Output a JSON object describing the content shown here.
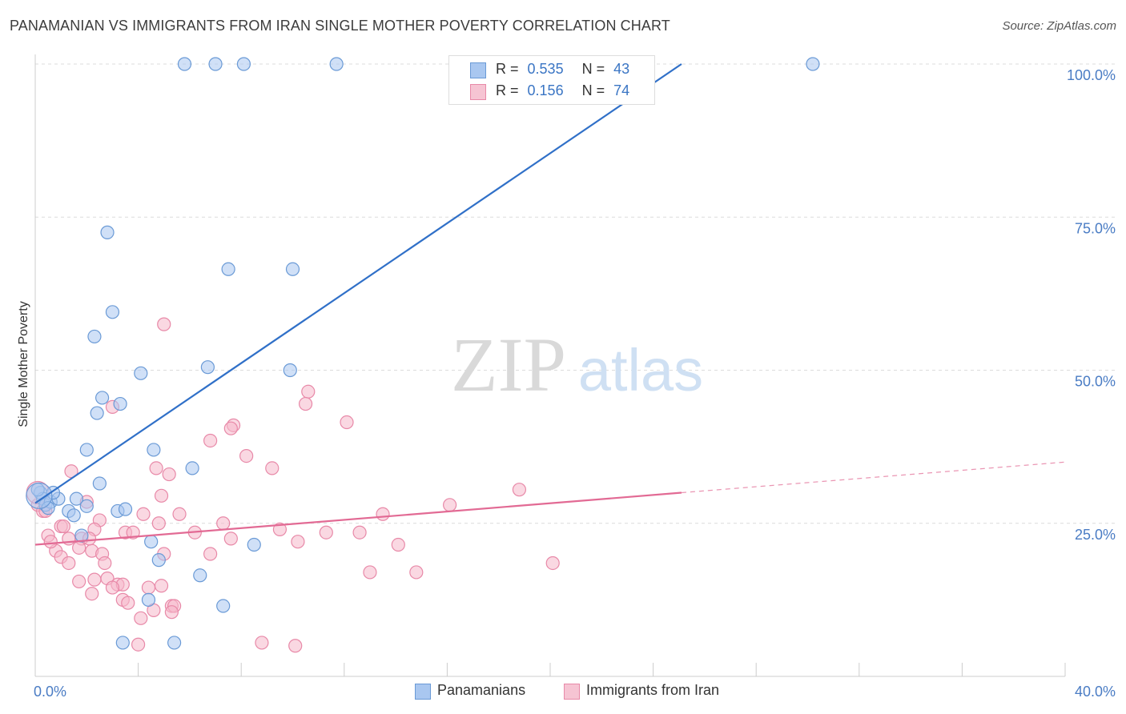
{
  "title": "PANAMANIAN VS IMMIGRANTS FROM IRAN SINGLE MOTHER POVERTY CORRELATION CHART",
  "source": "Source: ZipAtlas.com",
  "watermark": {
    "zip": "ZIP",
    "atlas": "atlas"
  },
  "colors": {
    "blue_fill": "#a9c7f0",
    "blue_stroke": "#6a9ad6",
    "blue_line": "#3070c8",
    "pink_fill": "#f6b8cb",
    "pink_stroke": "#e889a8",
    "pink_line": "#e26a94",
    "tick": "#4a7cc4",
    "grid": "#dcdcdc"
  },
  "legend": {
    "r_label": "R =",
    "n_label": "N =",
    "series": [
      {
        "r": "0.535",
        "n": "43"
      },
      {
        "r": "0.156",
        "n": "74"
      }
    ]
  },
  "bottom_legend": [
    "Panamanians",
    "Immigrants from Iran"
  ],
  "chart_data": {
    "type": "scatter",
    "title": "PANAMANIAN VS IMMIGRANTS FROM IRAN SINGLE MOTHER POVERTY CORRELATION CHART",
    "xlabel": "",
    "ylabel": "Single Mother Poverty",
    "xlim": [
      0,
      40
    ],
    "ylim": [
      0,
      100
    ],
    "x_tick_labels": [
      "0.0%",
      "40.0%"
    ],
    "y_ticks": [
      25,
      50,
      75,
      100
    ],
    "y_tick_labels": [
      "25.0%",
      "50.0%",
      "75.0%",
      "100.0%"
    ],
    "series": [
      {
        "name": "Panamanians",
        "r": 0.535,
        "n": 43,
        "trend": {
          "x0": 0,
          "y0": 28.3,
          "x1": 25.1,
          "y1": 100,
          "dashed_to": null
        },
        "points": [
          [
            5.8,
            100
          ],
          [
            7.0,
            100
          ],
          [
            8.1,
            100
          ],
          [
            11.7,
            100
          ],
          [
            30.2,
            100
          ],
          [
            2.8,
            72.5
          ],
          [
            7.5,
            66.5
          ],
          [
            10.0,
            66.5
          ],
          [
            3.0,
            59.5
          ],
          [
            2.3,
            55.5
          ],
          [
            4.1,
            49.5
          ],
          [
            6.7,
            50.5
          ],
          [
            9.9,
            50.0
          ],
          [
            2.6,
            45.5
          ],
          [
            3.3,
            44.5
          ],
          [
            2.4,
            43.0
          ],
          [
            2.0,
            37.0
          ],
          [
            4.6,
            37.0
          ],
          [
            6.1,
            34.0
          ],
          [
            2.5,
            31.5
          ],
          [
            0.2,
            30.0
          ],
          [
            0.3,
            29.0
          ],
          [
            0.4,
            28.0
          ],
          [
            0.6,
            28.5
          ],
          [
            0.9,
            29.0
          ],
          [
            0.7,
            30.0
          ],
          [
            1.6,
            29.0
          ],
          [
            1.3,
            27.0
          ],
          [
            1.5,
            26.3
          ],
          [
            2.0,
            27.8
          ],
          [
            3.2,
            27.0
          ],
          [
            3.5,
            27.3
          ],
          [
            1.8,
            23.0
          ],
          [
            4.5,
            22.0
          ],
          [
            8.5,
            21.5
          ],
          [
            4.8,
            19.0
          ],
          [
            6.4,
            16.5
          ],
          [
            4.4,
            12.5
          ],
          [
            7.3,
            11.5
          ],
          [
            3.4,
            5.5
          ],
          [
            5.4,
            5.5
          ],
          [
            0.1,
            30.5
          ],
          [
            0.5,
            27.5
          ]
        ]
      },
      {
        "name": "Immigrants from Iran",
        "r": 0.156,
        "n": 74,
        "trend": {
          "x0": 0,
          "y0": 21.5,
          "x1": 25.1,
          "y1": 30.0,
          "dashed_to": [
            40,
            35.0
          ]
        },
        "points": [
          [
            5.0,
            57.5
          ],
          [
            10.6,
            46.5
          ],
          [
            10.5,
            44.5
          ],
          [
            3.0,
            44.0
          ],
          [
            12.1,
            41.5
          ],
          [
            7.7,
            41.0
          ],
          [
            7.6,
            40.5
          ],
          [
            6.8,
            38.5
          ],
          [
            8.2,
            36.0
          ],
          [
            9.2,
            34.0
          ],
          [
            4.7,
            34.0
          ],
          [
            5.2,
            33.0
          ],
          [
            1.4,
            33.5
          ],
          [
            18.8,
            30.5
          ],
          [
            16.1,
            28.0
          ],
          [
            2.0,
            28.5
          ],
          [
            0.1,
            28.0
          ],
          [
            0.3,
            27.0
          ],
          [
            4.2,
            26.5
          ],
          [
            5.6,
            26.5
          ],
          [
            13.5,
            26.5
          ],
          [
            2.5,
            25.5
          ],
          [
            4.8,
            25.0
          ],
          [
            7.3,
            25.0
          ],
          [
            1.0,
            24.5
          ],
          [
            2.3,
            24.0
          ],
          [
            3.5,
            23.5
          ],
          [
            3.8,
            23.5
          ],
          [
            6.2,
            23.5
          ],
          [
            9.5,
            24.0
          ],
          [
            11.3,
            23.5
          ],
          [
            12.6,
            23.5
          ],
          [
            0.5,
            23.0
          ],
          [
            1.3,
            22.5
          ],
          [
            1.8,
            22.5
          ],
          [
            7.6,
            22.5
          ],
          [
            10.2,
            22.0
          ],
          [
            14.1,
            21.5
          ],
          [
            0.8,
            20.5
          ],
          [
            1.7,
            21.0
          ],
          [
            2.2,
            20.5
          ],
          [
            1.0,
            19.5
          ],
          [
            2.6,
            20.0
          ],
          [
            5.0,
            20.0
          ],
          [
            6.8,
            20.0
          ],
          [
            1.3,
            18.5
          ],
          [
            2.7,
            18.5
          ],
          [
            13.0,
            17.0
          ],
          [
            14.8,
            17.0
          ],
          [
            20.1,
            18.5
          ],
          [
            1.7,
            15.5
          ],
          [
            2.3,
            15.8
          ],
          [
            2.8,
            16.0
          ],
          [
            3.2,
            15.0
          ],
          [
            3.4,
            15.0
          ],
          [
            3.0,
            14.5
          ],
          [
            4.4,
            14.5
          ],
          [
            4.9,
            14.8
          ],
          [
            2.2,
            13.5
          ],
          [
            3.4,
            12.5
          ],
          [
            3.6,
            12.0
          ],
          [
            5.3,
            11.5
          ],
          [
            5.4,
            11.5
          ],
          [
            4.6,
            10.8
          ],
          [
            5.3,
            10.5
          ],
          [
            4.1,
            9.5
          ],
          [
            8.8,
            5.5
          ],
          [
            10.1,
            5.0
          ],
          [
            4.0,
            5.2
          ],
          [
            4.9,
            29.5
          ],
          [
            0.6,
            22.0
          ],
          [
            1.1,
            24.5
          ],
          [
            2.1,
            22.5
          ],
          [
            0.4,
            27.0
          ]
        ]
      }
    ]
  }
}
